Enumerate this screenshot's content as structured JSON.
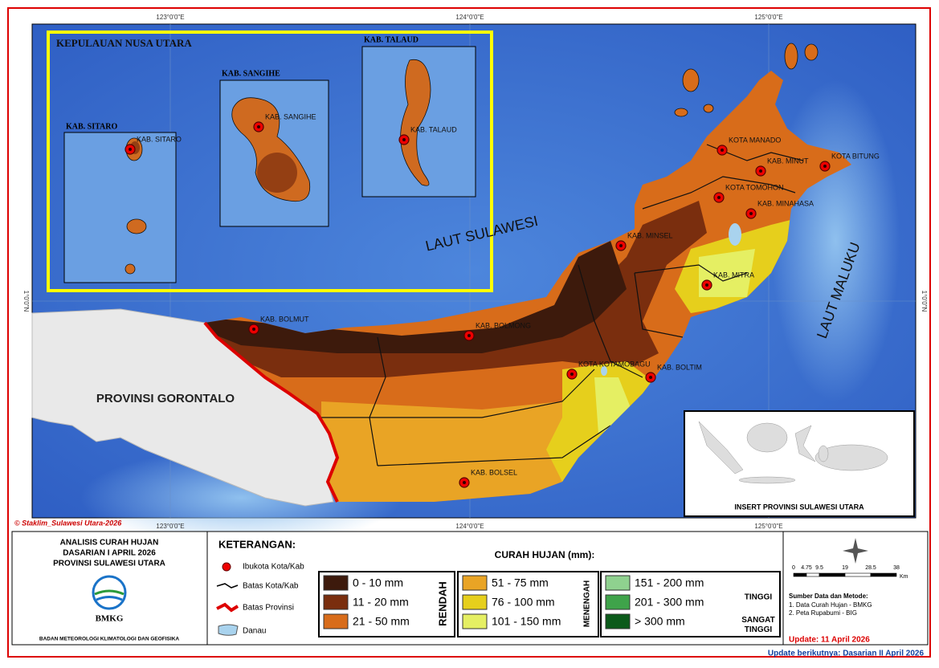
{
  "header": {
    "title_lines": [
      "ANALISIS CURAH HUJAN",
      "DASARIAN I APRIL 2026",
      "PROVINSI SULAWESI UTARA"
    ],
    "logo_text": "BMKG",
    "agency": "BADAN METEOROLOGI KLIMATOLOGI DAN GEOFISIKA"
  },
  "copyright": "© Staklim_Sulawesi Utara-2026",
  "grid_labels": {
    "longitudes": [
      "123°0'0\"E",
      "124°0'0\"E",
      "125°0'0\"E"
    ],
    "latitude": "1°0'0\"N"
  },
  "inset": {
    "title": "KEPULAUAN NUSA UTARA",
    "panels": [
      "KAB. SITARO",
      "KAB. SANGIHE",
      "KAB. TALAUD"
    ]
  },
  "places": [
    "KAB. SITARO",
    "KAB. SANGIHE",
    "KAB. TALAUD",
    "KOTA MANADO",
    "KAB. MINUT",
    "KOTA BITUNG",
    "KOTA TOMOHON",
    "KAB. MINAHASA",
    "KAB. MINSEL",
    "KAB. MITRA",
    "KAB. BOLMUT",
    "KAB. BOLMONG",
    "KOTA KOTAMOBAGU",
    "KAB. BOLTIM",
    "KAB. BOLSEL"
  ],
  "seas": [
    "LAUT SULAWESI",
    "LAUT MALUKU"
  ],
  "neighbor": "PROVINSI GORONTALO",
  "overview_title": "INSERT PROVINSI SULAWESI UTARA",
  "legend": {
    "title": "KETERANGAN:",
    "symbols": [
      "Ibukota Kota/Kab",
      "Batas Kota/Kab",
      "Batas Provinsi",
      "Danau"
    ],
    "rain_title": "CURAH HUJAN (mm):",
    "groups": [
      {
        "name": "RENDAH",
        "classes": [
          {
            "label": "0 - 10 mm",
            "color": "#3d1a0c"
          },
          {
            "label": "11 - 20 mm",
            "color": "#7a2e0e"
          },
          {
            "label": "21 - 50 mm",
            "color": "#d86c1a"
          }
        ]
      },
      {
        "name": "MENENGAH",
        "classes": [
          {
            "label": "51 - 75 mm",
            "color": "#e9a425"
          },
          {
            "label": "76 - 100 mm",
            "color": "#e6cf1c"
          },
          {
            "label": "101 - 150 mm",
            "color": "#e5ef63"
          }
        ]
      },
      {
        "name": "TINGGI",
        "classes": [
          {
            "label": "151 - 200 mm",
            "color": "#8fd18f"
          },
          {
            "label": "201 - 300 mm",
            "color": "#3fa34a"
          }
        ]
      },
      {
        "name": "SANGAT TINGGI",
        "classes": [
          {
            "label": "> 300 mm",
            "color": "#0b5a1a"
          }
        ]
      }
    ]
  },
  "scale": {
    "ticks": [
      0,
      4.75,
      9.5,
      19,
      28.5,
      38
    ],
    "unit": "Km"
  },
  "sources": {
    "title": "Sumber Data dan Metode:",
    "items": [
      "1. Data Curah Hujan - BMKG",
      "2. Peta Rupabumi - BIG"
    ]
  },
  "update": "Update: 11 April 2026",
  "next_update": "Update berikutnya: Dasarian II April 2026"
}
